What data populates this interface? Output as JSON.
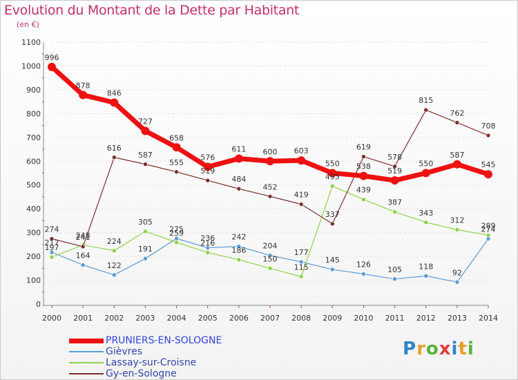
{
  "title": "Evolution du Montant de la Dette par Habitant",
  "unit": "(en €)",
  "logo": {
    "letters": [
      "P",
      "r",
      "o",
      "x",
      "i",
      "t",
      "i"
    ],
    "colors": [
      "#2f84c8",
      "#e8a02a",
      "#5ab33c",
      "#e23c3c",
      "#2f84c8",
      "#e8a02a",
      "#5ab33c"
    ]
  },
  "chart_data": {
    "type": "line",
    "x": [
      "2000",
      "2001",
      "2002",
      "2003",
      "2004",
      "2005",
      "2006",
      "2007",
      "2008",
      "2009",
      "2010",
      "2011",
      "2012",
      "2013",
      "2014"
    ],
    "ylim": [
      0,
      1100
    ],
    "yticks": [
      0,
      100,
      200,
      300,
      400,
      500,
      600,
      700,
      800,
      900,
      1000,
      1100
    ],
    "grid": "horizontal",
    "legend_position": "bottom-left",
    "series": [
      {
        "name": "PRUNIERS-EN-SOLOGNE",
        "color": "#ee1111",
        "values": [
          996,
          878,
          846,
          727,
          658,
          576,
          611,
          600,
          603,
          550,
          538,
          519,
          550,
          587,
          545
        ]
      },
      {
        "name": "Gièvres",
        "color": "#5b9bd5",
        "values": [
          217,
          164,
          122,
          191,
          275,
          236,
          242,
          204,
          177,
          145,
          126,
          105,
          118,
          92,
          274
        ]
      },
      {
        "name": "Lassay-sur-Croisne",
        "color": "#8fd24a",
        "values": [
          197,
          248,
          224,
          305,
          259,
          216,
          186,
          150,
          115,
          495,
          439,
          387,
          343,
          312,
          289
        ]
      },
      {
        "name": "Gy-en-Sologne",
        "color": "#7a2e2e",
        "values": [
          274,
          241,
          616,
          587,
          555,
          519,
          484,
          452,
          419,
          337,
          619,
          578,
          815,
          762,
          708
        ]
      }
    ]
  }
}
